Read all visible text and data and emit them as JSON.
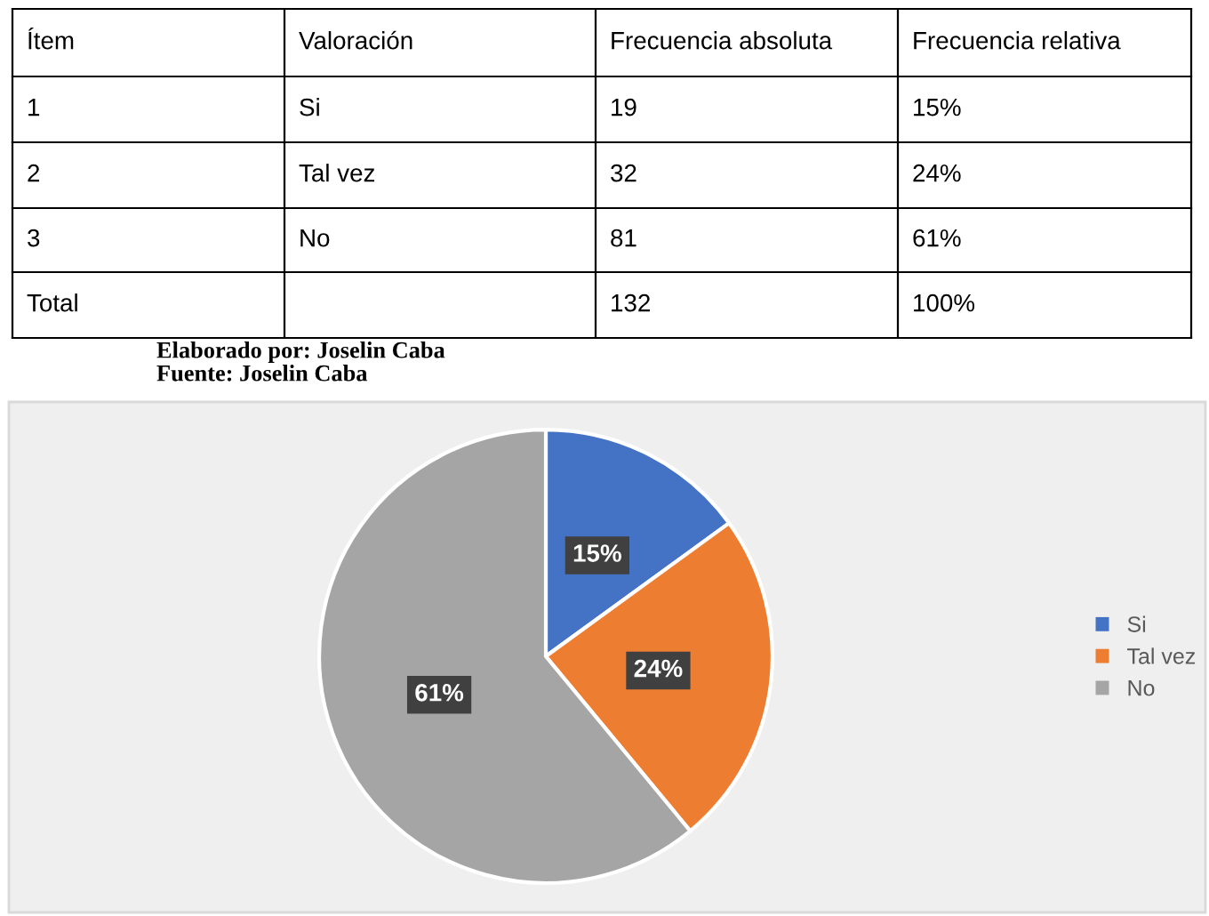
{
  "chart_data": {
    "type": "pie",
    "categories": [
      "Si",
      "Tal vez",
      "No"
    ],
    "values": [
      15,
      24,
      61
    ],
    "value_labels": [
      "15%",
      "24%",
      "61%"
    ],
    "colors": [
      "#4472c4",
      "#ed7d31",
      "#a5a5a5"
    ],
    "legend": "right",
    "annotations": [
      "Ítem",
      "Valoración",
      "Frecuencia absoluta",
      "Frecuencia relativa",
      "1",
      "2",
      "3",
      "Total",
      "19",
      "32",
      "81",
      "132",
      "15%",
      "24%",
      "61%",
      "100%",
      "Elaborado por: Joselin Caba",
      "Fuente: Joselin Caba"
    ]
  }
}
